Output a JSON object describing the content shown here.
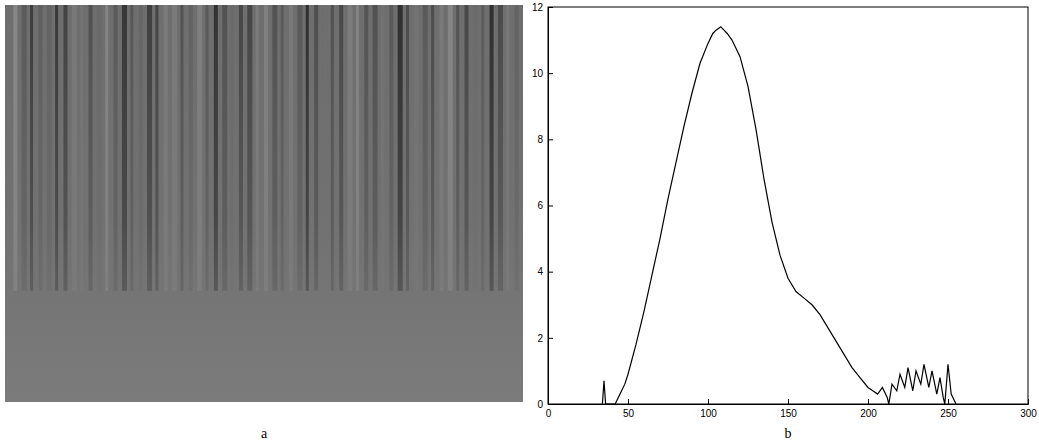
{
  "image": {
    "caption": "a"
  },
  "chart_data": {
    "type": "line",
    "annotations": [
      "b"
    ],
    "x": [
      34,
      35,
      36,
      42,
      45,
      48,
      50,
      55,
      60,
      65,
      70,
      75,
      80,
      85,
      90,
      95,
      100,
      103,
      105,
      108,
      110,
      112,
      115,
      120,
      125,
      130,
      135,
      140,
      145,
      150,
      155,
      160,
      165,
      170,
      175,
      180,
      185,
      190,
      195,
      200,
      203,
      206,
      209,
      212,
      213,
      215,
      218,
      220,
      223,
      225,
      228,
      230,
      233,
      235,
      238,
      240,
      243,
      245,
      247,
      248,
      250,
      252,
      255
    ],
    "values": [
      0,
      0.7,
      0,
      0,
      0.3,
      0.6,
      0.9,
      1.8,
      2.8,
      3.9,
      5.0,
      6.2,
      7.3,
      8.4,
      9.4,
      10.3,
      10.9,
      11.2,
      11.3,
      11.4,
      11.3,
      11.2,
      11.0,
      10.5,
      9.6,
      8.3,
      6.8,
      5.5,
      4.5,
      3.8,
      3.4,
      3.2,
      3.0,
      2.7,
      2.3,
      1.9,
      1.5,
      1.1,
      0.8,
      0.5,
      0.4,
      0.3,
      0.5,
      0.2,
      0,
      0.6,
      0.4,
      0.9,
      0.5,
      1.1,
      0.4,
      1.0,
      0.6,
      1.2,
      0.5,
      1.0,
      0.3,
      0.8,
      0.2,
      0,
      1.2,
      0.3,
      0
    ],
    "color": "#000000",
    "xlim": [
      0,
      300
    ],
    "xticks": [
      0,
      50,
      100,
      150,
      200,
      250,
      300
    ],
    "ylim": [
      0,
      12
    ],
    "yticks": [
      0,
      2,
      4,
      6,
      8,
      10,
      12
    ],
    "grid": false
  }
}
